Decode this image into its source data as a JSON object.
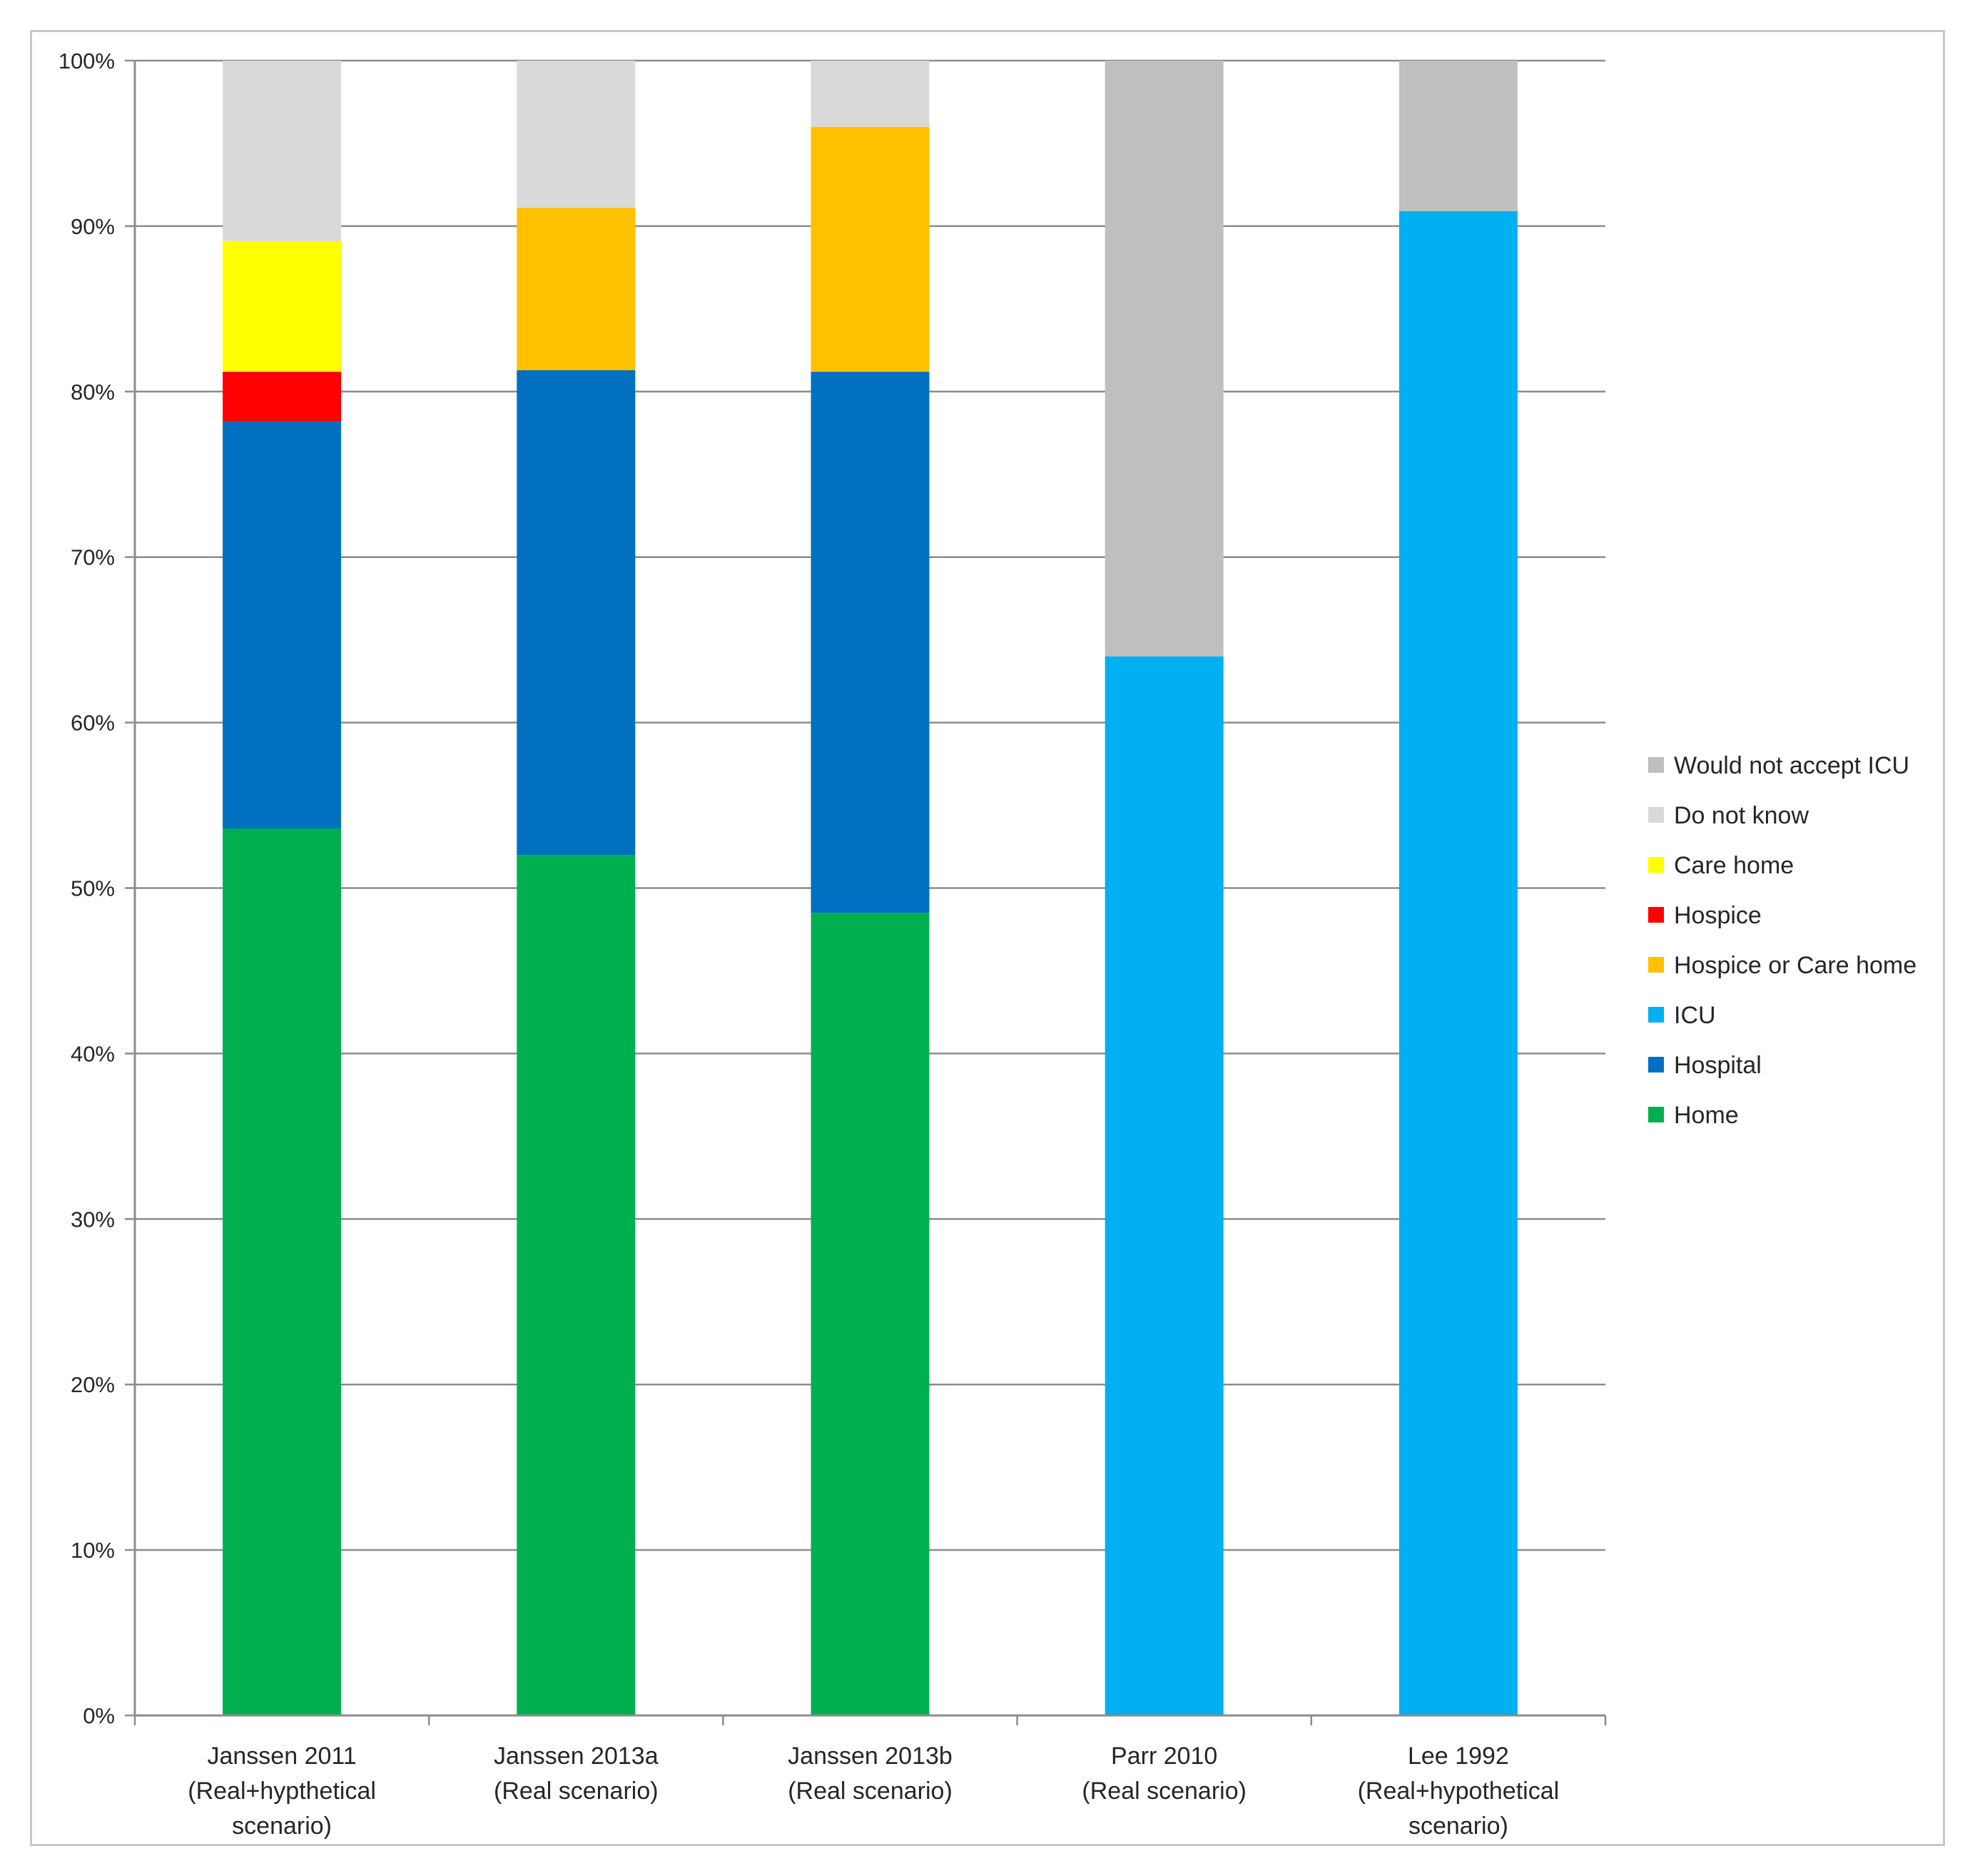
{
  "chart_data": {
    "type": "bar",
    "stacked": true,
    "categories": [
      [
        "Janssen 2011",
        "(Real+hypthetical",
        "scenario)"
      ],
      [
        "Janssen 2013a",
        "(Real scenario)"
      ],
      [
        "Janssen 2013b",
        "(Real scenario)"
      ],
      [
        "Parr 2010",
        "(Real scenario)"
      ],
      [
        "Lee 1992",
        "(Real+hypothetical",
        "scenario)"
      ]
    ],
    "series": [
      {
        "name": "Home",
        "color": "#00b050",
        "values": [
          53.6,
          52.0,
          48.5,
          0,
          0
        ]
      },
      {
        "name": "Hospital",
        "color": "#0070c0",
        "values": [
          24.6,
          29.3,
          32.7,
          0,
          0
        ]
      },
      {
        "name": "ICU",
        "color": "#00b0f0",
        "values": [
          0,
          0,
          0,
          64.0,
          90.9
        ]
      },
      {
        "name": "Hospice or Care home",
        "color": "#ffc000",
        "values": [
          0,
          9.8,
          14.8,
          0,
          0
        ]
      },
      {
        "name": "Hospice",
        "color": "#ff0000",
        "values": [
          3.0,
          0,
          0,
          0,
          0
        ]
      },
      {
        "name": "Care home",
        "color": "#ffff00",
        "values": [
          7.9,
          0,
          0,
          0,
          0
        ]
      },
      {
        "name": "Do not know",
        "color": "#d9d9d9",
        "values": [
          10.9,
          8.9,
          4.0,
          0,
          0
        ]
      },
      {
        "name": "Would not accept ICU",
        "color": "#bfbfbf",
        "values": [
          0,
          0,
          0,
          36.0,
          9.1
        ]
      }
    ],
    "legend_order": [
      "Would not accept ICU",
      "Do not know",
      "Care home",
      "Hospice",
      "Hospice or Care home",
      "ICU",
      "Hospital",
      "Home"
    ],
    "yticks": [
      "0%",
      "10%",
      "20%",
      "30%",
      "40%",
      "50%",
      "60%",
      "70%",
      "80%",
      "90%",
      "100%"
    ],
    "ylim": [
      0,
      100
    ],
    "grid": true,
    "legend_position": "right",
    "title": "",
    "xlabel": "",
    "ylabel": ""
  }
}
